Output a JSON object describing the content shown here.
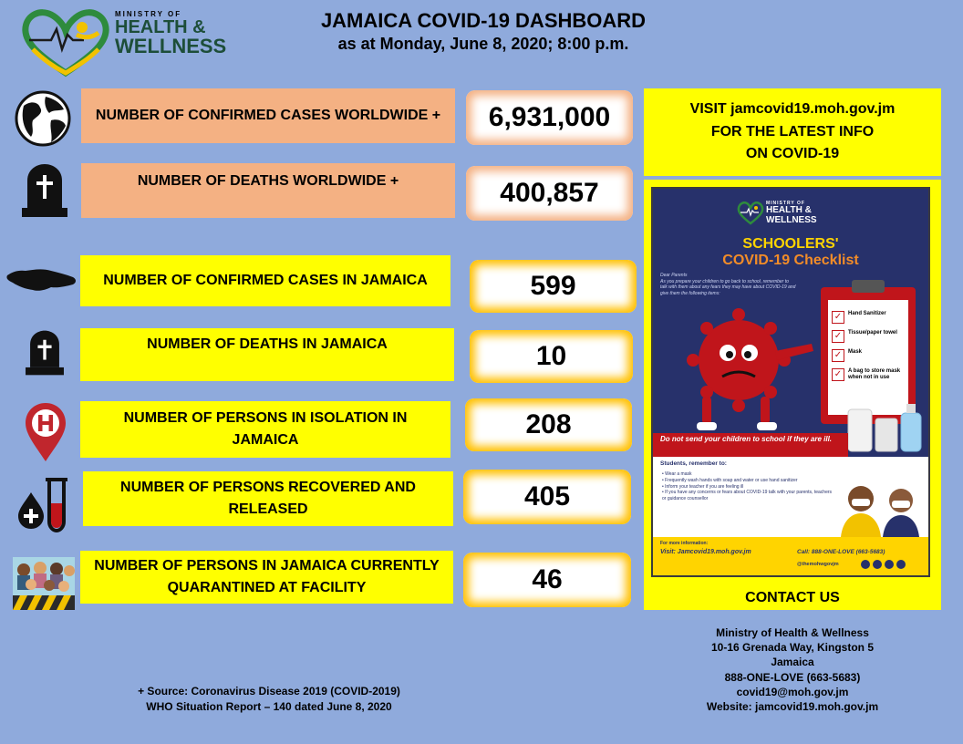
{
  "header": {
    "logo": {
      "line1": "MINISTRY OF",
      "line2": "HEALTH &",
      "line3": "WELLNESS"
    },
    "title": "JAMAICA COVID-19 DASHBOARD",
    "subtitle": "as at Monday, June 8, 2020; 8:00 p.m."
  },
  "stats": [
    {
      "label": "NUMBER OF CONFIRMED CASES WORLDWIDE +",
      "value": "6,931,000",
      "icon": "globe-icon"
    },
    {
      "label": "NUMBER OF DEATHS WORLDWIDE +",
      "value": "400,857",
      "icon": "tombstone-icon"
    },
    {
      "label": "NUMBER OF CONFIRMED CASES IN JAMAICA",
      "value": "599",
      "icon": "jamaica-map-icon"
    },
    {
      "label": "NUMBER OF DEATHS IN JAMAICA",
      "value": "10",
      "icon": "tombstone-icon"
    },
    {
      "label": "NUMBER OF PERSONS IN ISOLATION IN JAMAICA",
      "value": "208",
      "icon": "hospital-pin-icon"
    },
    {
      "label": "NUMBER OF PERSONS RECOVERED AND RELEASED",
      "value": "405",
      "icon": "blood-test-icon"
    },
    {
      "label": "NUMBER OF PERSONS IN JAMAICA CURRENTLY QUARANTINED AT FACILITY",
      "value": "46",
      "icon": "quarantine-people-icon"
    }
  ],
  "visit": {
    "line1": "VISIT  jamcovid19.moh.gov.jm",
    "line2": "FOR THE LATEST INFO",
    "line3": "ON COVID-19"
  },
  "poster": {
    "logo_line1": "MINISTRY OF",
    "logo_line2": "HEALTH &",
    "logo_line3": "WELLNESS",
    "title1": "SCHOOLERS'",
    "title2": "COVID-19 Checklist",
    "dear": "Dear Parents",
    "intro": "As you prepare your children to go back to school, remember to talk with them about any fears they may have about COVID-19 and give them the following items:",
    "checklist": [
      "Hand Sanitizer",
      "Tissue/paper towel",
      "Mask",
      "A bag to store mask when not in use"
    ],
    "warning": "Do not send your children to school if they are ill.",
    "students_heading": "Students, remember to:",
    "students_items": [
      "Wear a mask",
      "Frequently wash hands with soap and water or use hand sanitizer",
      "Inform your teacher if you are feeling ill",
      "If you have any concerns or fears about COVID-19 talk with your parents, teachers or guidance counsellor"
    ],
    "more_info": "For more information:",
    "visit": "Visit: Jamcovid19.moh.gov.jm",
    "call": "Call: 888-ONE-LOVE (663-5683)",
    "handle": "@themohwgovjm"
  },
  "contact_label": "CONTACT US",
  "address": {
    "line1": "Ministry of Health & Wellness",
    "line2": "10-16 Grenada Way, Kingston 5",
    "line3": "Jamaica",
    "line4": "888-ONE-LOVE (663-5683)",
    "line5": "covid19@moh.gov.jm",
    "line6": "Website: jamcovid19.moh.gov.jm"
  },
  "source": {
    "line1": "+ Source: Coronavirus Disease 2019 (COVID-2019)",
    "line2": "WHO Situation Report – 140 dated June 8, 2020"
  },
  "colors": {
    "background": "#8faadc",
    "peach": "#f4b183",
    "yellow": "#ffff00",
    "orange_glow": "#ffc000",
    "poster_navy": "#27316b",
    "virus_red": "#c0151b"
  }
}
